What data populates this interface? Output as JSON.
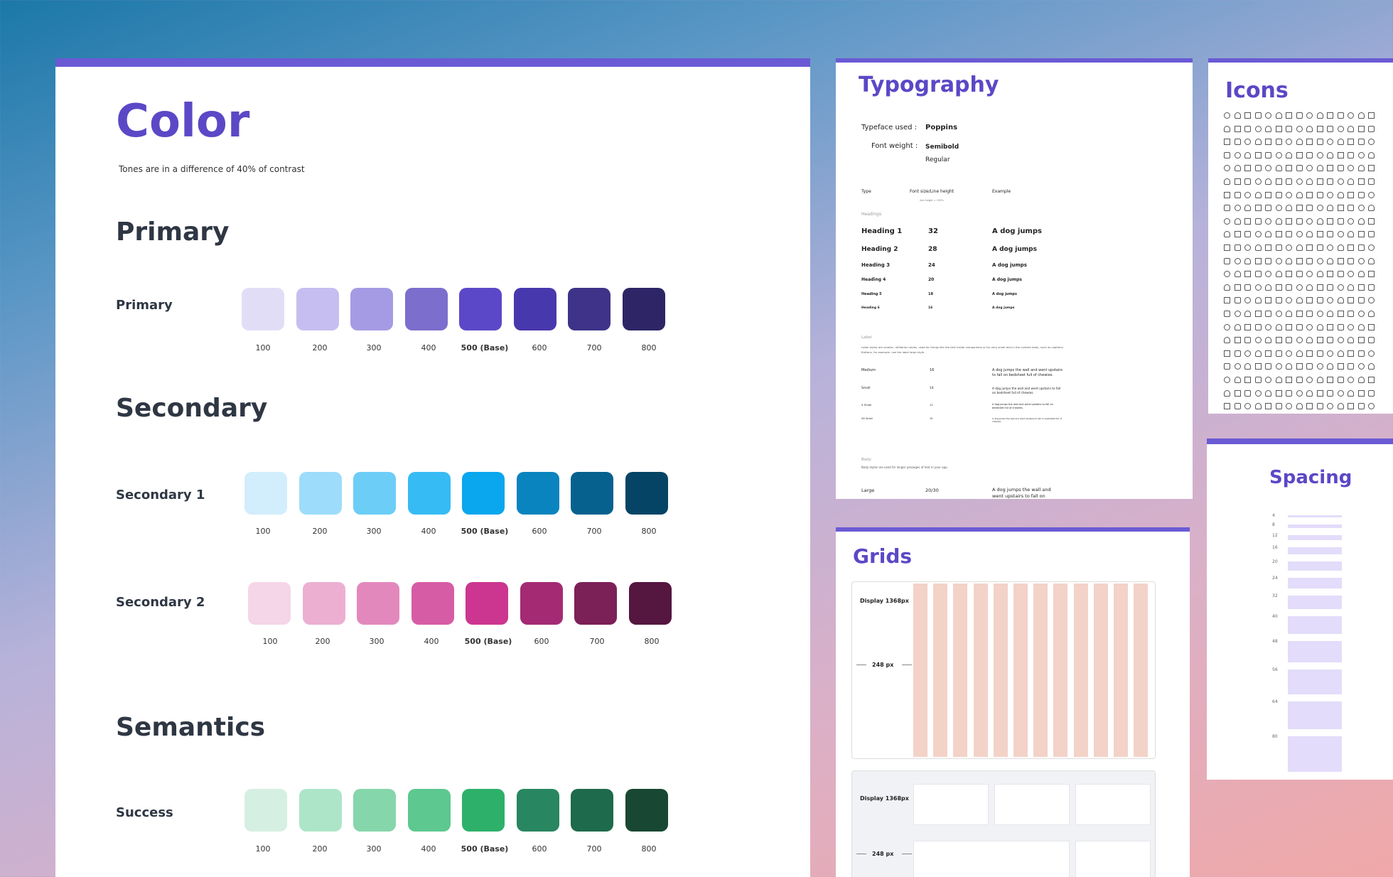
{
  "color": {
    "title": "Color",
    "subtitle": "Tones are in a difference of 40% of contrast",
    "sections": {
      "primary": "Primary",
      "secondary": "Secondary",
      "semantics": "Semantics"
    },
    "tones": [
      "100",
      "200",
      "300",
      "400",
      "500 (Base)",
      "600",
      "700",
      "800"
    ],
    "rows": [
      {
        "label": "Primary",
        "colors": [
          "#e2ddf6",
          "#c6bef0",
          "#a49be4",
          "#7b6ecd",
          "#5a48c8",
          "#4838ad",
          "#3e3388",
          "#2d2566"
        ]
      },
      {
        "label": "Secondary 1",
        "colors": [
          "#d2edfc",
          "#9ddcfa",
          "#6ccdf7",
          "#37bbf4",
          "#0aa6ee",
          "#0a84bf",
          "#07618e",
          "#064466"
        ]
      },
      {
        "label": "Secondary 2",
        "colors": [
          "#f5d5e8",
          "#ecafd2",
          "#e388bd",
          "#d75ca6",
          "#cc3690",
          "#a42a74",
          "#7c2058",
          "#551640"
        ]
      },
      {
        "label": "Success",
        "colors": [
          "#d5efe2",
          "#ade5c8",
          "#86d6ab",
          "#5dc88f",
          "#2db16a",
          "#288661",
          "#1e6a4c",
          "#184733"
        ]
      }
    ]
  },
  "typography": {
    "title": "Typography",
    "typeface_label": "Typeface used :",
    "typeface_value": "Poppins",
    "weight_label": "Font weight :",
    "weights": [
      "Semibold",
      "Regular"
    ],
    "columns": [
      "Type",
      "Font size/Line height",
      "Example"
    ],
    "col_note": "line height = 150%",
    "headings_group": "Headings",
    "headings": [
      {
        "name": "Heading 1",
        "size": "32",
        "example": "A dog jumps"
      },
      {
        "name": "Heading 2",
        "size": "28",
        "example": "A dog jumps"
      },
      {
        "name": "Heading 3",
        "size": "24",
        "example": "A dog jumps"
      },
      {
        "name": "Heading 4",
        "size": "20",
        "example": "A dog jumps"
      },
      {
        "name": "Heading 5",
        "size": "18",
        "example": "A dog jumps"
      },
      {
        "name": "Heading 6",
        "size": "16",
        "example": "A dog jumps"
      }
    ],
    "label_group": "Label",
    "label_desc_1": "Label styles are smaller, utilitarian styles, used for things like the text inside components or for very small text in the content body, such as captions.",
    "label_desc_2": "Buttons, for example, use the label large style.",
    "labels": [
      {
        "name": "Medium",
        "size": "16",
        "example_1": "A dog jumps the wall and went upstairs",
        "example_2": "to fall on bedsheet full of chewies."
      },
      {
        "name": "Small",
        "size": "14",
        "example_1": "A dog jumps the wall and went upstairs to fall",
        "example_2": "on bedsheet full of chewies."
      },
      {
        "name": "X Small",
        "size": "12",
        "example_1": "A dog jumps the wall and went upstairs to fall on",
        "example_2": "bedsheet full of chewies."
      },
      {
        "name": "XX Small",
        "size": "10",
        "example_1": "A dog jumps the wall and went upstairs to fall on bedsheet full of",
        "example_2": "chewies."
      }
    ],
    "body_group": "Body",
    "body_desc": "Body styles are used for longer passages of text in your app.",
    "body_row": {
      "name": "Large",
      "size": "20/30",
      "example_1": "A dog jumps the wall and",
      "example_2": "went upstairs to fall on"
    }
  },
  "icons": {
    "title": "Icons"
  },
  "spacing": {
    "title": "Spacing",
    "values": [
      "4",
      "8",
      "12",
      "16",
      "20",
      "24",
      "32",
      "40",
      "48",
      "56",
      "64",
      "80"
    ]
  },
  "grids": {
    "title": "Grids",
    "cards": [
      {
        "label": "Display 1368px",
        "measure": "248 px"
      },
      {
        "label": "Display 1368px",
        "measure": "248 px"
      }
    ]
  }
}
